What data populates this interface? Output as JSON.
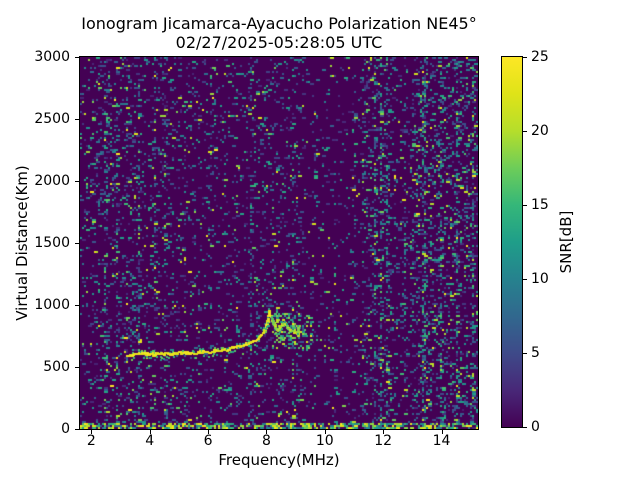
{
  "window": {
    "background_color": "#ffffff"
  },
  "chart_data": {
    "type": "heatmap",
    "title": "Ionogram Jicamarca-Ayacucho Polarization NE45°",
    "subtitle": "02/27/2025-05:28:05 UTC",
    "xlabel": "Frequency(MHz)",
    "ylabel": "Virtual Distance(Km)",
    "xlim": [
      1.61,
      15.25
    ],
    "ylim": [
      0,
      3000
    ],
    "xticks": [
      2,
      4,
      6,
      8,
      10,
      12,
      14
    ],
    "yticks": [
      0,
      500,
      1000,
      1500,
      2000,
      2500,
      3000
    ],
    "grid": false,
    "legend": "colorbar-right",
    "plot_background_color": "#440154",
    "colorbar": {
      "label": "SNR[dB]",
      "min": 0,
      "max": 25,
      "ticks": [
        0,
        5,
        10,
        15,
        20,
        25
      ],
      "colormap": "viridis",
      "stops": [
        "#440154",
        "#482878",
        "#3e4a89",
        "#31688e",
        "#26828e",
        "#1f9e89",
        "#35b779",
        "#6dcd59",
        "#b5de2b",
        "#dfe318",
        "#fde725"
      ]
    },
    "o_trace": {
      "description": "Main O-mode ionogram echo trace, flat layer rising to critical-frequency cusp",
      "snr_db_range": [
        22,
        25
      ],
      "points_mhz_km": [
        [
          3.3,
          600
        ],
        [
          3.7,
          603
        ],
        [
          4.2,
          605
        ],
        [
          4.7,
          608
        ],
        [
          5.2,
          612
        ],
        [
          5.7,
          618
        ],
        [
          6.2,
          626
        ],
        [
          6.7,
          640
        ],
        [
          7.1,
          668
        ],
        [
          7.45,
          695
        ],
        [
          7.7,
          728
        ],
        [
          7.9,
          775
        ],
        [
          8.0,
          830
        ],
        [
          8.06,
          890
        ],
        [
          8.09,
          940
        ]
      ]
    },
    "x_branches": [
      {
        "points_mhz_km": [
          [
            8.1,
            935
          ],
          [
            8.18,
            880
          ],
          [
            8.28,
            830
          ],
          [
            8.4,
            795
          ],
          [
            8.5,
            778
          ]
        ]
      },
      {
        "points_mhz_km": [
          [
            8.42,
            790
          ],
          [
            8.52,
            835
          ],
          [
            8.6,
            862
          ],
          [
            8.7,
            830
          ],
          [
            8.82,
            795
          ],
          [
            8.95,
            775
          ]
        ]
      },
      {
        "points_mhz_km": [
          [
            9.07,
            745
          ],
          [
            9.07,
            825
          ]
        ]
      }
    ],
    "spread_echo_cluster": {
      "f_range_mhz": [
        8.2,
        9.5
      ],
      "h_range_km": [
        670,
        920
      ],
      "density": 0.3,
      "snr_db_range": [
        10,
        25
      ]
    },
    "ground_clutter_band": {
      "h_range_km": [
        0,
        45
      ],
      "density": 0.5,
      "snr_db_range": [
        8,
        25
      ]
    },
    "noise_bands": [
      {
        "f_range_mhz": [
          1.61,
          2.2
        ],
        "density": 0.11,
        "bias": 0.05
      },
      {
        "f_range_mhz": [
          2.2,
          5.0
        ],
        "density": 0.13,
        "bias": 0.05
      },
      {
        "f_range_mhz": [
          5.0,
          7.4
        ],
        "density": 0.09,
        "bias": 0.0
      },
      {
        "f_range_mhz": [
          7.4,
          9.3
        ],
        "density": 0.11,
        "bias": 0.05
      },
      {
        "f_range_mhz": [
          9.3,
          11.3
        ],
        "density": 0.055,
        "bias": 0.0
      },
      {
        "f_range_mhz": [
          11.3,
          12.3
        ],
        "density": 0.17,
        "bias": 0.25
      },
      {
        "f_range_mhz": [
          12.3,
          13.0
        ],
        "density": 0.1,
        "bias": 0.15
      },
      {
        "f_range_mhz": [
          13.0,
          15.25
        ],
        "density": 0.19,
        "bias": 0.35
      }
    ],
    "rfi_stripes_mhz": [
      2.5,
      2.9,
      3.2,
      3.6,
      4.15,
      4.55,
      5.2,
      6.1,
      6.6,
      7.0,
      7.45,
      8.9,
      9.65,
      10.35,
      11.0,
      11.75,
      11.95,
      12.15,
      12.75,
      13.4,
      13.95,
      14.5,
      15.05
    ],
    "noise_seed": 42
  }
}
